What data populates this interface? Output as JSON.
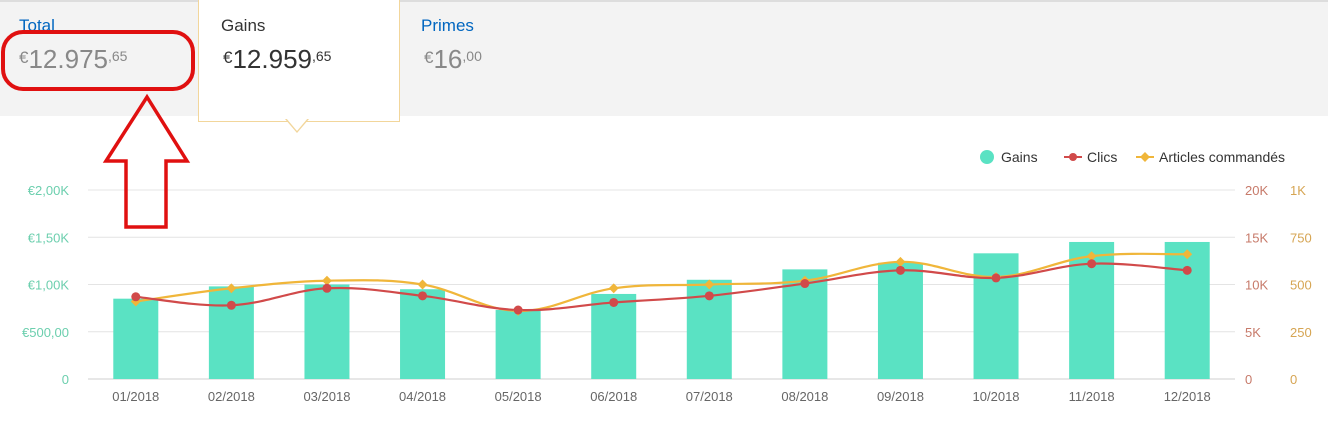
{
  "summary": {
    "total": {
      "label": "Total",
      "currency": "€",
      "integer": "12.975",
      "decimals": ",65"
    },
    "gains": {
      "label": "Gains",
      "currency": "€",
      "integer": "12.959",
      "decimals": ",65"
    },
    "primes": {
      "label": "Primes",
      "currency": "€",
      "integer": "16",
      "decimals": ",00"
    }
  },
  "colors": {
    "gains": "#5ae2c3",
    "clics": "#d14a4a",
    "articles": "#f0b63a",
    "left_axis": "#6ccfae",
    "right_axis_clics": "#c77a6a",
    "right_axis_articles": "#d6a553",
    "annotation": "#e01010",
    "grid": "#e4e4e4"
  },
  "chart_data": {
    "type": "bar",
    "categories": [
      "01/2018",
      "02/2018",
      "03/2018",
      "04/2018",
      "05/2018",
      "06/2018",
      "07/2018",
      "08/2018",
      "09/2018",
      "10/2018",
      "11/2018",
      "12/2018"
    ],
    "legend": [
      "Gains",
      "Clics",
      "Articles commandés"
    ],
    "legend_position": "top-right",
    "grid": true,
    "series": [
      {
        "name": "Gains",
        "type": "bar",
        "axis": "left",
        "values": [
          850,
          980,
          1000,
          950,
          730,
          900,
          1050,
          1160,
          1230,
          1330,
          1450,
          1450
        ]
      },
      {
        "name": "Clics",
        "type": "line",
        "axis": "right-clics",
        "values": [
          8700,
          7800,
          9600,
          8800,
          7300,
          8100,
          8800,
          10100,
          11500,
          10700,
          12200,
          11500
        ]
      },
      {
        "name": "Articles commandés",
        "type": "line",
        "axis": "right-articles",
        "values": [
          410,
          480,
          520,
          500,
          360,
          480,
          500,
          520,
          620,
          540,
          650,
          660
        ]
      }
    ],
    "y_left": {
      "ticks": [
        "0",
        "€500,00",
        "€1,00K",
        "€1,50K",
        "€2,00K"
      ],
      "range": [
        0,
        2000
      ]
    },
    "y_right_clics": {
      "ticks": [
        "0",
        "5K",
        "10K",
        "15K",
        "20K"
      ],
      "range": [
        0,
        20000
      ]
    },
    "y_right_articles": {
      "ticks": [
        "0",
        "250",
        "500",
        "750",
        "1K"
      ],
      "range": [
        0,
        1000
      ]
    }
  },
  "annotation": {
    "icon": "arrow-up-icon",
    "highlight": "total-highlight-ellipse"
  }
}
